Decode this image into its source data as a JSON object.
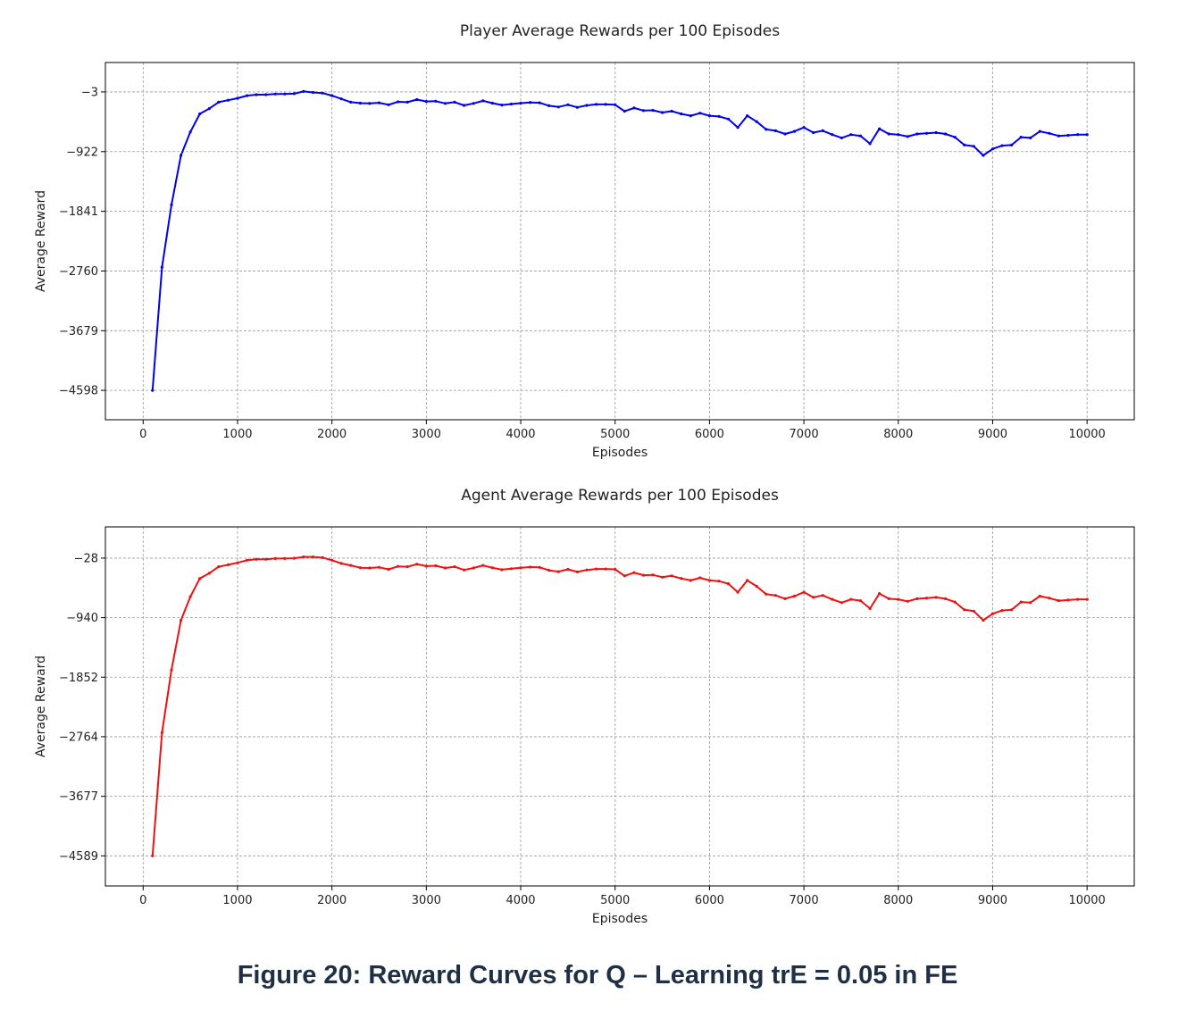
{
  "figure_caption": "Figure 20: Reward Curves for Q – Learning trE = 0.05 in FE",
  "chart_data": [
    {
      "type": "line",
      "title": "Player Average Rewards per 100 Episodes",
      "xlabel": "Episodes",
      "ylabel": "Average Reward",
      "xlim": [
        -400,
        10500
      ],
      "ylim": [
        -5050,
        450
      ],
      "xticks": [
        0,
        1000,
        2000,
        3000,
        4000,
        5000,
        6000,
        7000,
        8000,
        9000,
        10000
      ],
      "yticks": [
        -3,
        -922,
        -1841,
        -2760,
        -3679,
        -4598
      ],
      "grid": true,
      "color": "#0000ee",
      "x": [
        100,
        200,
        300,
        400,
        500,
        600,
        700,
        800,
        900,
        1000,
        1100,
        1200,
        1300,
        1400,
        1500,
        1600,
        1700,
        1800,
        1900,
        2000,
        2100,
        2200,
        2300,
        2400,
        2500,
        2600,
        2700,
        2800,
        2900,
        3000,
        3100,
        3200,
        3300,
        3400,
        3500,
        3600,
        3700,
        3800,
        3900,
        4000,
        4100,
        4200,
        4300,
        4400,
        4500,
        4600,
        4700,
        4800,
        4900,
        5000,
        5100,
        5200,
        5300,
        5400,
        5500,
        5600,
        5700,
        5800,
        5900,
        6000,
        6100,
        6200,
        6300,
        6400,
        6500,
        6600,
        6700,
        6800,
        6900,
        7000,
        7100,
        7200,
        7300,
        7400,
        7500,
        7600,
        7700,
        7800,
        7900,
        8000,
        8100,
        8200,
        8300,
        8400,
        8500,
        8600,
        8700,
        8800,
        8900,
        9000,
        9100,
        9200,
        9300,
        9400,
        9500,
        9600,
        9700,
        9800,
        9900,
        10000
      ],
      "y": [
        -4598,
        -2700,
        -1740,
        -980,
        -620,
        -340,
        -260,
        -160,
        -130,
        -100,
        -60,
        -45,
        -45,
        -35,
        -35,
        -30,
        5,
        -10,
        -20,
        -60,
        -110,
        -160,
        -175,
        -180,
        -170,
        -200,
        -155,
        -160,
        -120,
        -150,
        -145,
        -180,
        -160,
        -210,
        -180,
        -140,
        -175,
        -205,
        -190,
        -175,
        -165,
        -170,
        -215,
        -235,
        -200,
        -240,
        -210,
        -195,
        -195,
        -200,
        -300,
        -250,
        -290,
        -285,
        -320,
        -300,
        -340,
        -370,
        -330,
        -370,
        -380,
        -420,
        -550,
        -370,
        -460,
        -580,
        -600,
        -650,
        -610,
        -550,
        -630,
        -600,
        -660,
        -710,
        -660,
        -680,
        -800,
        -570,
        -650,
        -660,
        -690,
        -650,
        -640,
        -630,
        -650,
        -700,
        -820,
        -840,
        -980,
        -880,
        -830,
        -820,
        -700,
        -710,
        -610,
        -640,
        -680,
        -670,
        -660,
        -660
      ]
    },
    {
      "type": "line",
      "title": "Agent Average Rewards per 100 Episodes",
      "xlabel": "Episodes",
      "ylabel": "Average Reward",
      "xlim": [
        -400,
        10500
      ],
      "ylim": [
        -5050,
        450
      ],
      "xticks": [
        0,
        1000,
        2000,
        3000,
        4000,
        5000,
        6000,
        7000,
        8000,
        9000,
        10000
      ],
      "yticks": [
        -28,
        -940,
        -1852,
        -2764,
        -3677,
        -4589
      ],
      "grid": true,
      "color": "#ee1111",
      "x": [
        100,
        200,
        300,
        400,
        500,
        600,
        700,
        800,
        900,
        1000,
        1100,
        1200,
        1300,
        1400,
        1500,
        1600,
        1700,
        1800,
        1900,
        2000,
        2100,
        2200,
        2300,
        2400,
        2500,
        2600,
        2700,
        2800,
        2900,
        3000,
        3100,
        3200,
        3300,
        3400,
        3500,
        3600,
        3700,
        3800,
        3900,
        4000,
        4100,
        4200,
        4300,
        4400,
        4500,
        4600,
        4700,
        4800,
        4900,
        5000,
        5100,
        5200,
        5300,
        5400,
        5500,
        5600,
        5700,
        5800,
        5900,
        6000,
        6100,
        6200,
        6300,
        6400,
        6500,
        6600,
        6700,
        6800,
        6900,
        7000,
        7100,
        7200,
        7300,
        7400,
        7500,
        7600,
        7700,
        7800,
        7900,
        8000,
        8100,
        8200,
        8300,
        8400,
        8500,
        8600,
        8700,
        8800,
        8900,
        9000,
        9100,
        9200,
        9300,
        9400,
        9500,
        9600,
        9700,
        9800,
        9900,
        10000
      ],
      "y": [
        -4589,
        -2700,
        -1740,
        -980,
        -620,
        -340,
        -260,
        -160,
        -130,
        -100,
        -60,
        -45,
        -45,
        -35,
        -35,
        -30,
        -10,
        -10,
        -20,
        -60,
        -110,
        -140,
        -175,
        -180,
        -170,
        -200,
        -155,
        -160,
        -120,
        -150,
        -145,
        -180,
        -160,
        -210,
        -180,
        -140,
        -175,
        -205,
        -190,
        -175,
        -165,
        -170,
        -215,
        -235,
        -200,
        -240,
        -210,
        -195,
        -195,
        -200,
        -300,
        -250,
        -290,
        -285,
        -320,
        -300,
        -340,
        -370,
        -330,
        -370,
        -380,
        -420,
        -550,
        -370,
        -460,
        -580,
        -600,
        -650,
        -610,
        -550,
        -630,
        -600,
        -660,
        -710,
        -660,
        -680,
        -800,
        -570,
        -650,
        -660,
        -690,
        -650,
        -640,
        -630,
        -650,
        -700,
        -820,
        -840,
        -980,
        -880,
        -830,
        -820,
        -700,
        -710,
        -610,
        -640,
        -680,
        -670,
        -660,
        -660
      ]
    }
  ]
}
